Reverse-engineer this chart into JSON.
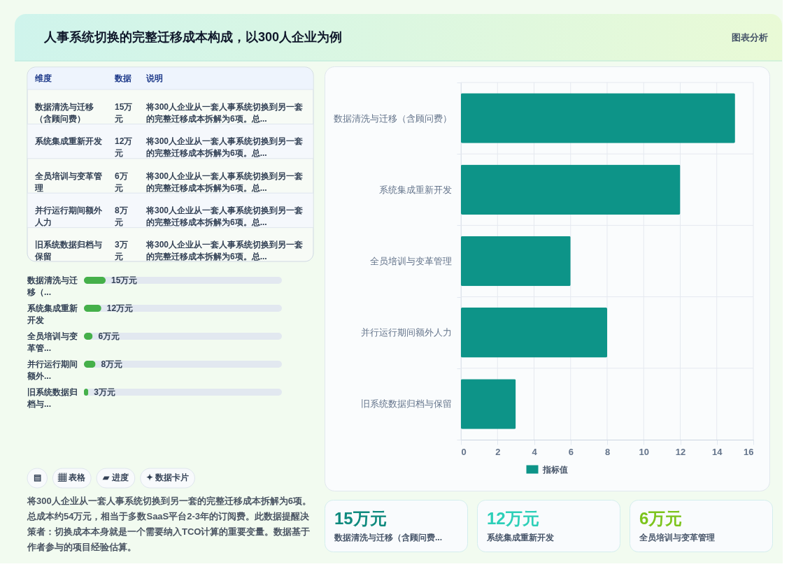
{
  "chart_data": [
    {
      "type": "other",
      "title": "人事系统切换的完整迁移成本构成，以300人企业为例",
      "annotations": [
        "图表分析"
      ]
    },
    {
      "type": "other",
      "categories": [
        "数据清洗与迁移（含顾问费）",
        "系统集成重新开发",
        "全员培训与变革管理",
        "并行运行期间额外人力",
        "旧系统数据归档与保留"
      ],
      "value_labels": [
        "15万元",
        "12万元",
        "6万元",
        "8万元",
        "3万元"
      ],
      "annotations": [
        "维度",
        "数据",
        "说明",
        "将300人企业从一套人事系统切换到另一套的完整迁移成本拆解为6项。总...",
        "将300人企业从一套人事系统切换到另一套的完整迁移成本拆解为6项。总...",
        "将300人企业从一套人事系统切换到另一套的完整迁移成本拆解为6项。总...",
        "将300人企业从一套人事系统切换到另一套的完整迁移成本拆解为6项。总...",
        "将300人企业从一套人事系统切换到另一套的完整迁移成本拆解为6项。总..."
      ]
    },
    {
      "type": "bar",
      "orientation": "horizontal",
      "categories": [
        "数据清洗与迁移（...",
        "系统集成重新开发",
        "全员培训与变革管...",
        "并行运行期间额外...",
        "旧系统数据归档与..."
      ],
      "values": [
        15,
        12,
        6,
        8,
        3
      ],
      "value_labels": [
        "15万元",
        "12万元",
        "6万元",
        "8万元",
        "3万元"
      ],
      "color": "#45b04a",
      "tick_labels": "y"
    },
    {
      "type": "other",
      "annotations": [
        "▤",
        "▦ 表格",
        "▰ 进度",
        "✦ 数据卡片",
        "将300人企业从一套人事系统切换到另一套的完整迁移成本拆解为6项。总成本约54万元，相当于多数SaaS平台2-3年的订阅费。此数据提醒决策者：切换成本本身就是一个需要纳入TCO计算的重要变量。数据基于作者参与的项目经验估算。"
      ]
    },
    {
      "type": "bar",
      "orientation": "horizontal",
      "categories": [
        "数据清洗与迁移（含顾问费）",
        "系统集成重新开发",
        "全员培训与变革管理",
        "并行运行期间额外人力",
        "旧系统数据归档与保留"
      ],
      "series": [
        {
          "name": "指标值",
          "color": "#0d9488",
          "values": [
            15,
            12,
            6,
            8,
            3
          ]
        }
      ],
      "xlim": [
        0,
        16
      ],
      "xticks": [
        0,
        2,
        4,
        6,
        8,
        10,
        12,
        14,
        16
      ],
      "grid": true,
      "legend": "bottom"
    },
    {
      "type": "other",
      "categories": [
        "数据清洗与迁移（含顾问费...",
        "系统集成重新开发",
        "全员培训与变革管理"
      ],
      "value_labels": [
        "15万元",
        "12万元",
        "6万元"
      ]
    }
  ]
}
